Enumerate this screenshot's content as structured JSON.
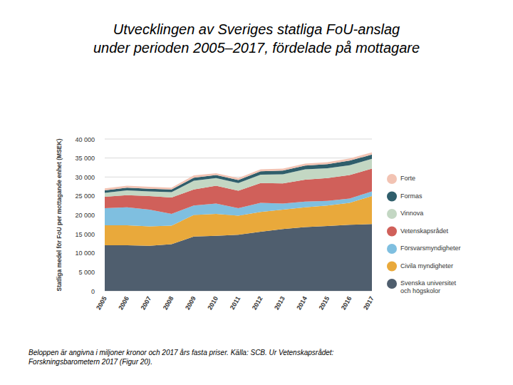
{
  "chart_data": {
    "type": "area",
    "stacked": true,
    "title": "Utvecklingen av Sveriges statliga FoU-anslag under perioden 2005–2017, fördelade på mottagare",
    "y_label": "Statliga medel för FoU per mottagande enhet (MSEK)",
    "caption": [
      "Beloppen är angivna i miljoner kronor och 2017 års fasta priser. Källa: SCB. Ur Vetenskapsrådet:",
      "Forskningsbarometern 2017 (Figur 20)."
    ],
    "categories": [
      "2005",
      "2006",
      "2007",
      "2008",
      "2009",
      "2010",
      "2011",
      "2012",
      "2013",
      "2014",
      "2015",
      "2016",
      "2017"
    ],
    "ylim": [
      0,
      40000
    ],
    "yticks": [
      0,
      {
        "value": 5000,
        "label": "5 000"
      },
      {
        "value": 10000,
        "label": "10 000"
      },
      {
        "value": 15000,
        "label": "15 000"
      },
      {
        "value": 20000,
        "label": "20 000"
      },
      {
        "value": 25000,
        "label": "25 000"
      },
      {
        "value": 30000,
        "label": "30 000"
      },
      {
        "value": 35000,
        "label": "35 000"
      },
      {
        "value": 40000,
        "label": "40 000"
      }
    ],
    "grid": true,
    "legend": "right",
    "series": [
      {
        "name": "Svenska universitet och högskolor",
        "color": "#4f5e6e",
        "values": [
          12000,
          12000,
          11900,
          12300,
          14300,
          14500,
          14800,
          15600,
          16300,
          16800,
          17100,
          17400,
          17600
        ]
      },
      {
        "name": "Civila myndigheter",
        "color": "#e9a93b",
        "values": [
          5300,
          5300,
          5100,
          4900,
          5700,
          5800,
          5000,
          5200,
          5100,
          5200,
          5400,
          5800,
          7400
        ]
      },
      {
        "name": "Försvarsmyndigheter",
        "color": "#7fbfe0",
        "values": [
          4500,
          4700,
          4400,
          3100,
          2500,
          2700,
          2000,
          2400,
          1600,
          1500,
          1200,
          1100,
          1200
        ]
      },
      {
        "name": "Vetenskapsrådet",
        "color": "#d0605a",
        "values": [
          3000,
          3200,
          3600,
          4300,
          4200,
          4700,
          4600,
          5200,
          5300,
          5800,
          6000,
          6200,
          6000
        ]
      },
      {
        "name": "Vinnova",
        "color": "#c3d7c3",
        "values": [
          1000,
          1300,
          1200,
          1400,
          2300,
          2000,
          2000,
          2200,
          2400,
          2700,
          2600,
          2600,
          2600
        ]
      },
      {
        "name": "Formas",
        "color": "#2f5e6b",
        "values": [
          700,
          700,
          700,
          700,
          800,
          800,
          800,
          900,
          1000,
          1000,
          1100,
          1200,
          1100
        ]
      },
      {
        "name": "Forte",
        "color": "#f2c3b3",
        "values": [
          500,
          500,
          500,
          500,
          600,
          500,
          500,
          500,
          500,
          500,
          500,
          600,
          600
        ]
      }
    ]
  }
}
